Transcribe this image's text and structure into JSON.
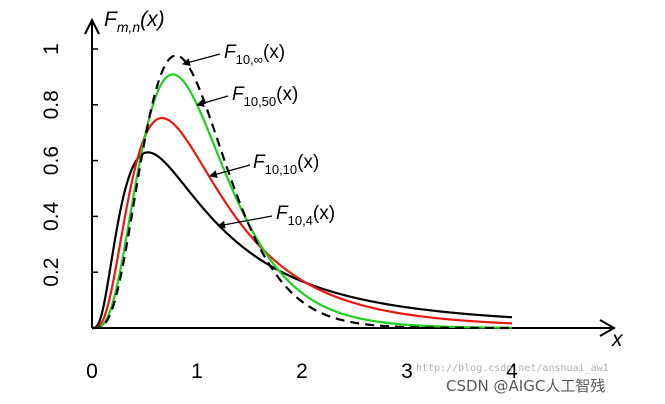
{
  "chart_data": {
    "type": "line",
    "xlabel": "x",
    "ylabel": "F_{m,n}(x)",
    "xlim": [
      0,
      4.2
    ],
    "ylim": [
      0,
      1.05
    ],
    "x_ticks": [
      "0",
      "1",
      "2",
      "3",
      "4"
    ],
    "y_ticks": [
      "0.2",
      "0.4",
      "0.6",
      "0.8",
      "1"
    ],
    "grid": false,
    "legend": "inline callouts with arrows",
    "series": [
      {
        "name": "F_{10,∞}(x)",
        "m": 10,
        "n": null,
        "color": "#000000",
        "style": "dashed"
      },
      {
        "name": "F_{10,50}(x)",
        "m": 10,
        "n": 50,
        "color": "#1fd01f",
        "style": "solid"
      },
      {
        "name": "F_{10,10}(x)",
        "m": 10,
        "n": 10,
        "color": "#e8190f",
        "style": "solid"
      },
      {
        "name": "F_{10,4}(x)",
        "m": 10,
        "n": 4,
        "color": "#000000",
        "style": "solid"
      }
    ],
    "annotations": [
      {
        "label_main": "F",
        "label_sub": "10,∞",
        "label_arg": "(x)",
        "series": 0
      },
      {
        "label_main": "F",
        "label_sub": "10,50",
        "label_arg": "(x)",
        "series": 1
      },
      {
        "label_main": "F",
        "label_sub": "10,10",
        "label_arg": "(x)",
        "series": 2
      },
      {
        "label_main": "F",
        "label_sub": "10,4",
        "label_arg": "(x)",
        "series": 3
      }
    ],
    "ylabel_parts": {
      "main": "F",
      "sub": "m,n",
      "arg": "(x)"
    }
  },
  "watermark": {
    "faint": "http://blog.csdn.net/anshuai_aw1",
    "main": "CSDN @AIGC人工智残"
  }
}
